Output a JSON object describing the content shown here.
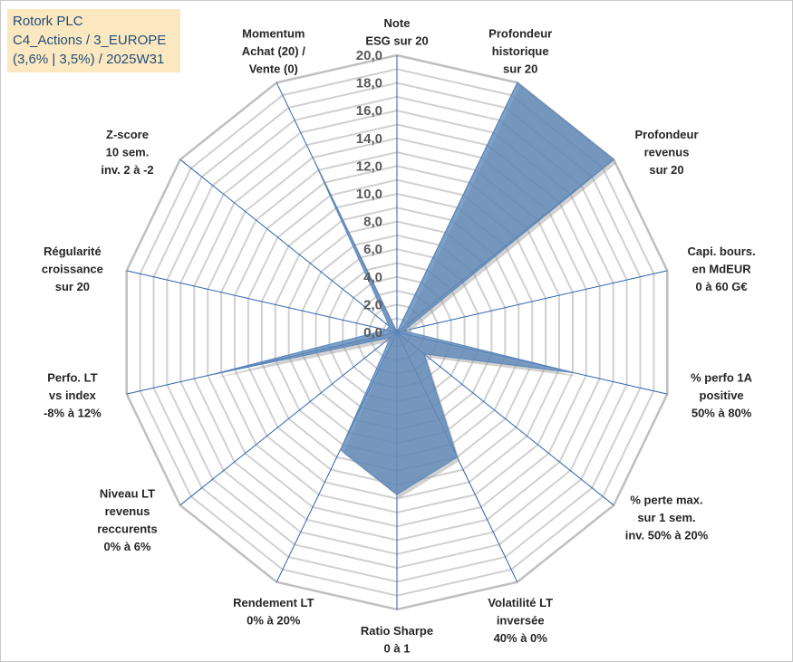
{
  "info": {
    "company": "Rotork PLC",
    "category": "C4_Actions / 3_EUROPE",
    "rates_period": "(3,6% | 3,5%) / 2025W31"
  },
  "colors": {
    "fill": "#5b86b9",
    "fill_opacity": 0.78,
    "spoke": "#2e62b0",
    "ring": "#d0d0d0",
    "outer_ring": "#bfbfbf",
    "info_bg": "#fce8c0",
    "info_text": "#1f4e79"
  },
  "chart_data": {
    "type": "radar",
    "title": "",
    "rlim": [
      0,
      20
    ],
    "ring_step": 1,
    "grid": true,
    "ticks": [
      "0,0",
      "2,0",
      "4,0",
      "6,0",
      "8,0",
      "10,0",
      "12,0",
      "14,0",
      "16,0",
      "18,0",
      "20,0"
    ],
    "tick_values": [
      0,
      2,
      4,
      6,
      8,
      10,
      12,
      14,
      16,
      18,
      20
    ],
    "axes": [
      {
        "label": [
          "Note",
          "ESG sur 20"
        ],
        "value": 0
      },
      {
        "label": [
          "Profondeur",
          "historique",
          "sur 20"
        ],
        "value": 20
      },
      {
        "label": [
          "Profondeur",
          "revenus",
          "sur 20"
        ],
        "value": 20
      },
      {
        "label": [
          "Capi. bours.",
          "en MdEUR",
          "0 à 60 G€"
        ],
        "value": 0.5
      },
      {
        "label": [
          "% perfo 1A",
          "positive",
          "50% à 80%"
        ],
        "value": 13.2
      },
      {
        "label": [
          "% perte max.",
          "sur 1 sem.",
          "inv. 50% à 20%"
        ],
        "value": 2.5
      },
      {
        "label": [
          "Volatilité LT",
          "inversée",
          "40% à 0%"
        ],
        "value": 10.0
      },
      {
        "label": [
          "Ratio Sharpe",
          "0 à 1"
        ],
        "value": 11.7
      },
      {
        "label": [
          "Rendement LT",
          "0% à 20%"
        ],
        "value": 9.4
      },
      {
        "label": [
          "Niveau LT",
          "revenus",
          "reccurents",
          "0% à 6%"
        ],
        "value": 0.6
      },
      {
        "label": [
          "Perfo. LT",
          "vs index",
          "-8% à 12%"
        ],
        "value": 14.0
      },
      {
        "label": [
          "Régularité",
          "croissance",
          "sur 20"
        ],
        "value": 0.8
      },
      {
        "label": [
          "Z-score",
          "10 sem.",
          "inv. 2 à -2"
        ],
        "value": 0.7
      },
      {
        "label": [
          "Momentum",
          "Achat (20) /",
          "Vente (0)"
        ],
        "value": 14.0
      }
    ]
  }
}
